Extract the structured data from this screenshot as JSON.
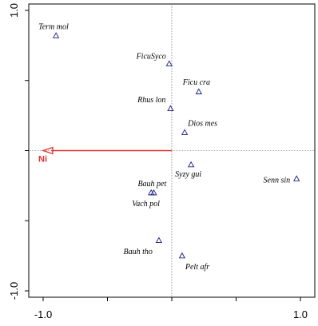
{
  "chart_data": {
    "type": "scatter",
    "title": "",
    "xlabel": "",
    "ylabel": "",
    "xlim": [
      -1.0,
      1.0
    ],
    "ylim": [
      -1.0,
      1.0
    ],
    "x_tick_labels": [
      "-1.0",
      "1.0"
    ],
    "y_tick_labels": [
      "1.0",
      "-1.0"
    ],
    "grid": false,
    "zero_lines": true,
    "points": [
      {
        "label": "Term mol",
        "x": -0.9,
        "y": 0.82
      },
      {
        "label": "FicuSyco",
        "x": -0.02,
        "y": 0.62
      },
      {
        "label": "Ficu cra",
        "x": 0.21,
        "y": 0.42
      },
      {
        "label": "Rhus lon",
        "x": -0.01,
        "y": 0.3
      },
      {
        "label": "Dios mes",
        "x": 0.1,
        "y": 0.13
      },
      {
        "label": "Syzy gui",
        "x": 0.15,
        "y": -0.1
      },
      {
        "label": "Senn sin",
        "x": 0.97,
        "y": -0.2
      },
      {
        "label": "Bauh pet",
        "x": -0.14,
        "y": -0.3
      },
      {
        "label": "Vach pol",
        "x": -0.16,
        "y": -0.3
      },
      {
        "label": "Bauh tho",
        "x": -0.1,
        "y": -0.64
      },
      {
        "label": "Pelt afr",
        "x": 0.08,
        "y": -0.75
      }
    ],
    "arrows": [
      {
        "label": "Ni",
        "x": -1.0,
        "y": 0.0,
        "color": "#e03030"
      }
    ],
    "colors": {
      "points": "#1a1a80",
      "arrow": "#e03030"
    }
  }
}
